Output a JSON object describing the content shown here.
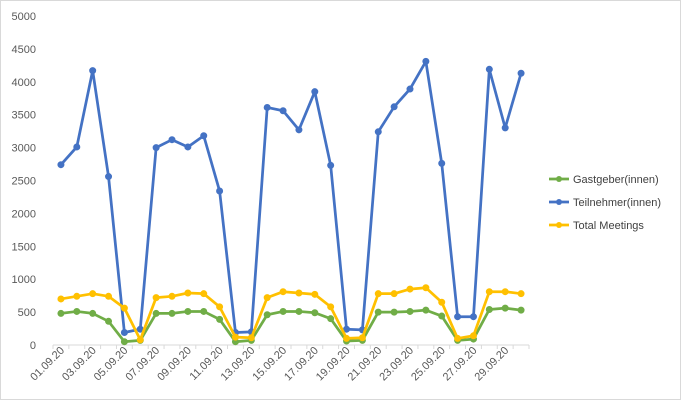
{
  "chart_data": {
    "type": "line",
    "title": "",
    "xlabel": "",
    "ylabel": "",
    "ylim": [
      0,
      5000
    ],
    "yticks": [
      0,
      500,
      1000,
      1500,
      2000,
      2500,
      3000,
      3500,
      4000,
      4500,
      5000
    ],
    "grid": "none",
    "legend_position": "right",
    "categories": [
      "01.09.20",
      "02.09.20",
      "03.09.20",
      "04.09.20",
      "05.09.20",
      "06.09.20",
      "07.09.20",
      "08.09.20",
      "09.09.20",
      "10.09.20",
      "11.09.20",
      "12.09.20",
      "13.09.20",
      "14.09.20",
      "15.09.20",
      "16.09.20",
      "17.09.20",
      "18.09.20",
      "19.09.20",
      "20.09.20",
      "21.09.20",
      "22.09.20",
      "23.09.20",
      "24.09.20",
      "25.09.20",
      "26.09.20",
      "27.09.20",
      "28.09.20",
      "29.09.20",
      "30.09.20"
    ],
    "xtick_labels": [
      "01.09.20",
      "03.09.20",
      "05.09.20",
      "07.09.20",
      "09.09.20",
      "11.09.20",
      "13.09.20",
      "15.09.20",
      "17.09.20",
      "19.09.20",
      "21.09.20",
      "23.09.20",
      "25.09.20",
      "27.09.20",
      "29.09.20"
    ],
    "series": [
      {
        "name": "Gastgeber(innen)",
        "color": "#70ad47",
        "values": [
          480,
          510,
          480,
          360,
          50,
          70,
          480,
          480,
          510,
          510,
          390,
          50,
          70,
          460,
          510,
          510,
          490,
          400,
          60,
          70,
          500,
          500,
          510,
          530,
          440,
          70,
          90,
          540,
          560,
          530
        ]
      },
      {
        "name": "Teilnehmer(innen)",
        "color": "#4472c4",
        "values": [
          2740,
          3010,
          4170,
          2560,
          190,
          240,
          3000,
          3120,
          3010,
          3180,
          2340,
          190,
          200,
          3610,
          3560,
          3270,
          3850,
          2730,
          240,
          230,
          3240,
          3620,
          3890,
          4310,
          2760,
          430,
          430,
          4190,
          3300,
          4130
        ]
      },
      {
        "name": "Total Meetings",
        "color": "#ffc000",
        "values": [
          700,
          740,
          780,
          740,
          560,
          80,
          720,
          740,
          790,
          780,
          580,
          120,
          110,
          720,
          810,
          790,
          770,
          580,
          100,
          110,
          780,
          780,
          850,
          870,
          650,
          100,
          140,
          810,
          810,
          780
        ]
      }
    ]
  }
}
